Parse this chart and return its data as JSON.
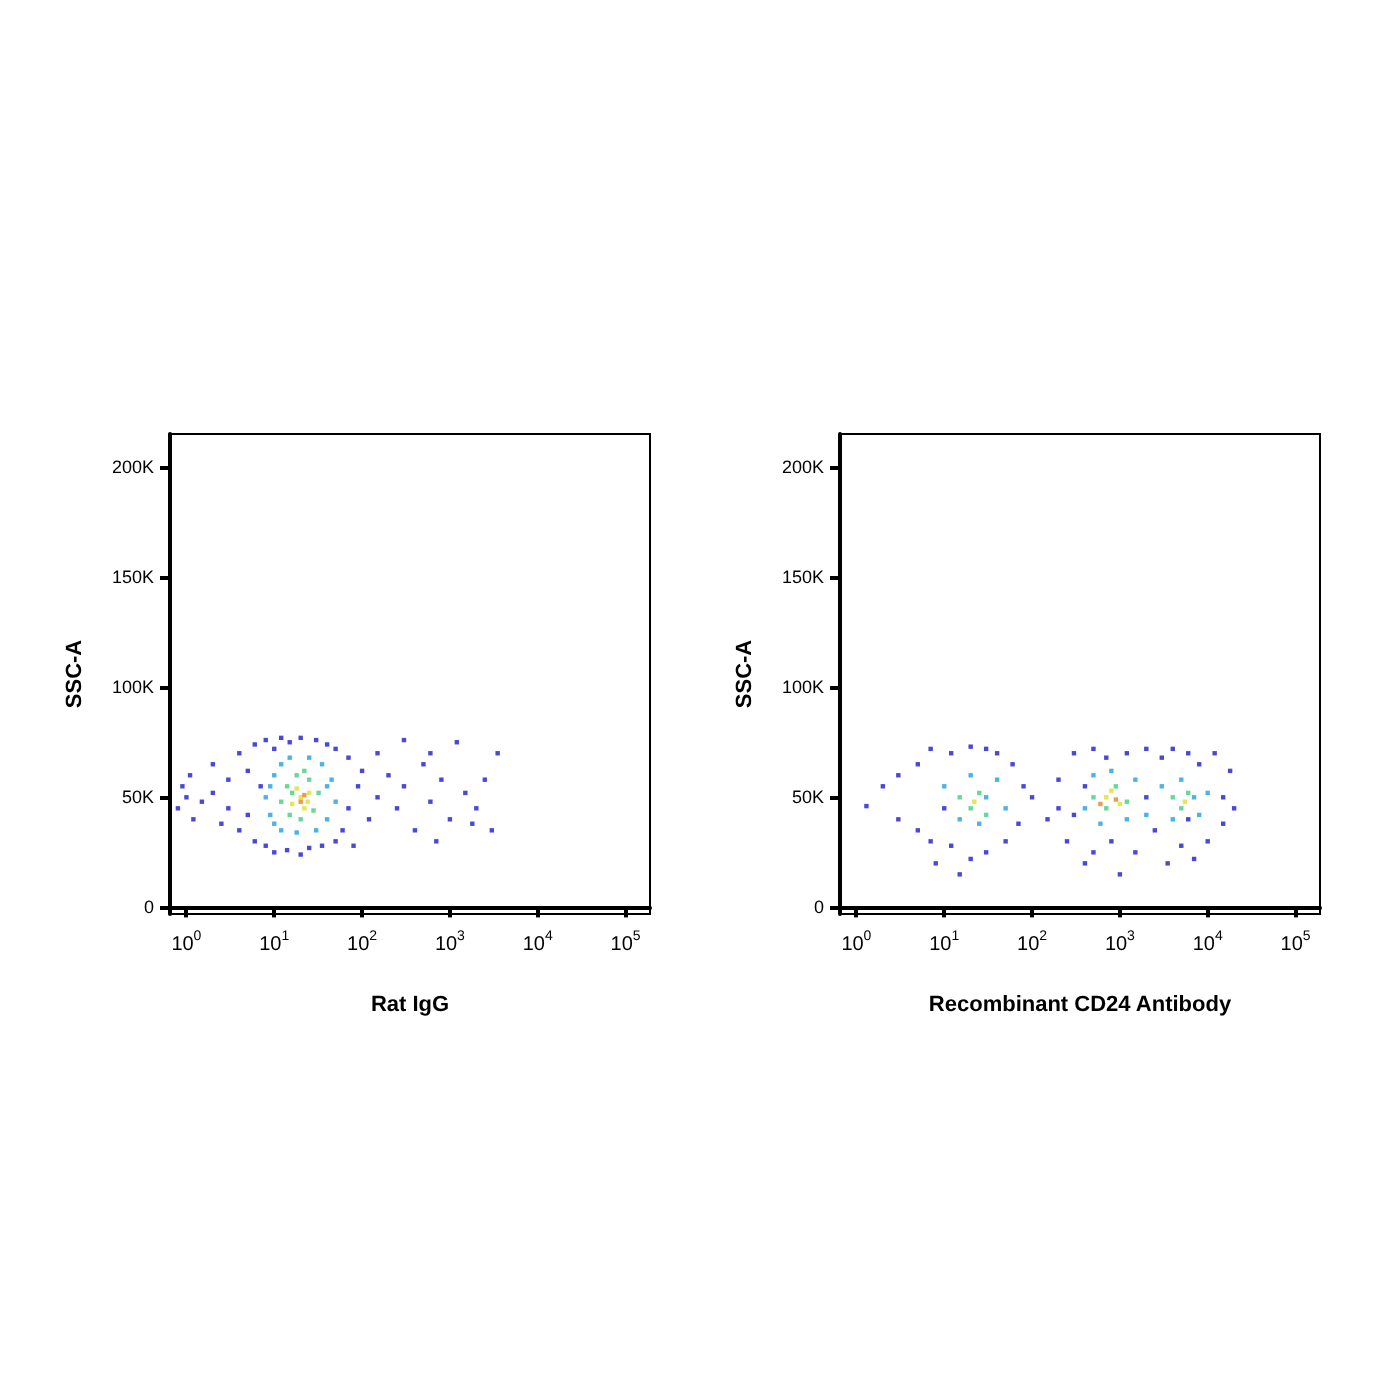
{
  "chart_data": [
    {
      "type": "scatter",
      "xlabel": "Rat IgG",
      "ylabel": "SSC-A",
      "log": "x",
      "marker": "square",
      "xlim": [
        0.65,
        190000
      ],
      "ylim": [
        -3000,
        215000
      ],
      "xticks": [
        {
          "value": 1,
          "label": "10$^{0}$"
        },
        {
          "value": 10,
          "label": "10$^{1}$"
        },
        {
          "value": 100,
          "label": "10$^{2}$"
        },
        {
          "value": 1000,
          "label": "10$^{3}$"
        },
        {
          "value": 10000,
          "label": "10$^{4}$"
        },
        {
          "value": 100000,
          "label": "10$^{5}$"
        }
      ],
      "yticks": [
        0,
        {
          "value": 50000,
          "label": "50K"
        },
        {
          "value": 100000,
          "label": "100K"
        },
        {
          "value": 150000,
          "label": "150K"
        },
        {
          "value": 200000,
          "label": "200K"
        }
      ],
      "series": [
        {
          "color": "#1a1ad0",
          "x": [
            0.8,
            0.9,
            1,
            1.2,
            1.1,
            1.5,
            2,
            2,
            2.5,
            3,
            3,
            4,
            4,
            5,
            5,
            6,
            6,
            7,
            8,
            8,
            10,
            10,
            12,
            14,
            15,
            20,
            20,
            25,
            30,
            35,
            40,
            50,
            50,
            60,
            70,
            70,
            80,
            90,
            100,
            120,
            150,
            150,
            200,
            250,
            300,
            300,
            400,
            500,
            600,
            700,
            800,
            1000,
            1200,
            1500,
            2000,
            2500,
            3000,
            3500,
            1800,
            600
          ],
          "values": [
            45000,
            55000,
            50000,
            40000,
            60000,
            48000,
            52000,
            65000,
            38000,
            58000,
            45000,
            70000,
            35000,
            62000,
            42000,
            74000,
            30000,
            55000,
            28000,
            76000,
            25000,
            72000,
            77000,
            26000,
            75000,
            24000,
            77000,
            27000,
            76000,
            28000,
            74000,
            30000,
            72000,
            35000,
            68000,
            45000,
            28000,
            55000,
            62000,
            40000,
            70000,
            50000,
            60000,
            45000,
            76000,
            55000,
            35000,
            65000,
            48000,
            30000,
            58000,
            40000,
            75000,
            52000,
            45000,
            58000,
            35000,
            70000,
            38000,
            70000
          ]
        },
        {
          "color": "#20a0e0",
          "x": [
            8,
            9,
            10,
            10,
            12,
            12,
            15,
            18,
            25,
            30,
            35,
            40,
            45,
            50,
            40,
            9
          ],
          "values": [
            50000,
            42000,
            60000,
            38000,
            65000,
            35000,
            68000,
            34000,
            68000,
            35000,
            65000,
            40000,
            58000,
            48000,
            55000,
            55000
          ]
        },
        {
          "color": "#40d080",
          "x": [
            12,
            14,
            15,
            18,
            20,
            25,
            28,
            32,
            22,
            16
          ],
          "values": [
            48000,
            55000,
            42000,
            60000,
            40000,
            58000,
            44000,
            52000,
            62000,
            52000
          ]
        },
        {
          "color": "#e0e020",
          "x": [
            16,
            20,
            22,
            25,
            18,
            24
          ],
          "values": [
            47000,
            50000,
            45000,
            52000,
            54000,
            48000
          ]
        },
        {
          "color": "#f08020",
          "x": [
            20,
            22
          ],
          "values": [
            48000,
            51000
          ]
        }
      ]
    },
    {
      "type": "scatter",
      "xlabel": "Recombinant CD24 Antibody",
      "ylabel": "SSC-A",
      "log": "x",
      "marker": "square",
      "xlim": [
        0.65,
        190000
      ],
      "ylim": [
        -3000,
        215000
      ],
      "xticks": [
        {
          "value": 1,
          "label": "10$^{0}$"
        },
        {
          "value": 10,
          "label": "10$^{1}$"
        },
        {
          "value": 100,
          "label": "10$^{2}$"
        },
        {
          "value": 1000,
          "label": "10$^{3}$"
        },
        {
          "value": 10000,
          "label": "10$^{4}$"
        },
        {
          "value": 100000,
          "label": "10$^{5}$"
        }
      ],
      "yticks": [
        0,
        {
          "value": 50000,
          "label": "50K"
        },
        {
          "value": 100000,
          "label": "100K"
        },
        {
          "value": 150000,
          "label": "150K"
        },
        {
          "value": 200000,
          "label": "200K"
        }
      ],
      "series": [
        {
          "color": "#1a1ad0",
          "x": [
            1.3,
            2,
            3,
            3,
            5,
            5,
            7,
            7,
            8,
            10,
            12,
            12,
            15,
            20,
            20,
            30,
            30,
            40,
            50,
            60,
            70,
            80,
            100,
            150,
            200,
            250,
            300,
            300,
            400,
            500,
            500,
            700,
            800,
            1000,
            1200,
            1500,
            2000,
            2500,
            3000,
            3500,
            4000,
            5000,
            6000,
            7000,
            8000,
            10000,
            12000,
            15000,
            20000,
            18000,
            15000,
            400,
            2000,
            200,
            6000
          ],
          "values": [
            46000,
            55000,
            40000,
            60000,
            35000,
            65000,
            30000,
            72000,
            20000,
            45000,
            70000,
            28000,
            15000,
            73000,
            22000,
            25000,
            72000,
            70000,
            30000,
            65000,
            38000,
            55000,
            50000,
            40000,
            58000,
            30000,
            70000,
            42000,
            20000,
            72000,
            25000,
            68000,
            30000,
            15000,
            70000,
            25000,
            72000,
            35000,
            68000,
            20000,
            72000,
            28000,
            70000,
            22000,
            65000,
            30000,
            70000,
            50000,
            45000,
            62000,
            38000,
            55000,
            50000,
            45000,
            40000
          ]
        },
        {
          "color": "#20a0e0",
          "x": [
            10,
            15,
            20,
            25,
            30,
            40,
            50,
            400,
            500,
            600,
            800,
            1200,
            1500,
            2000,
            3000,
            4000,
            5000,
            7000,
            8000,
            10000
          ],
          "values": [
            55000,
            40000,
            60000,
            38000,
            50000,
            58000,
            45000,
            45000,
            60000,
            38000,
            62000,
            40000,
            58000,
            42000,
            55000,
            40000,
            58000,
            50000,
            42000,
            52000
          ]
        },
        {
          "color": "#40d080",
          "x": [
            15,
            20,
            25,
            30,
            500,
            700,
            900,
            1200,
            4000,
            5000,
            6000
          ],
          "values": [
            50000,
            45000,
            52000,
            42000,
            50000,
            45000,
            55000,
            48000,
            50000,
            45000,
            52000
          ]
        },
        {
          "color": "#e0e020",
          "x": [
            22,
            700,
            1000,
            800,
            5500
          ],
          "values": [
            48000,
            50000,
            47000,
            53000,
            48000
          ]
        },
        {
          "color": "#f08020",
          "x": [
            900,
            600
          ],
          "values": [
            49000,
            47000
          ]
        }
      ]
    }
  ]
}
